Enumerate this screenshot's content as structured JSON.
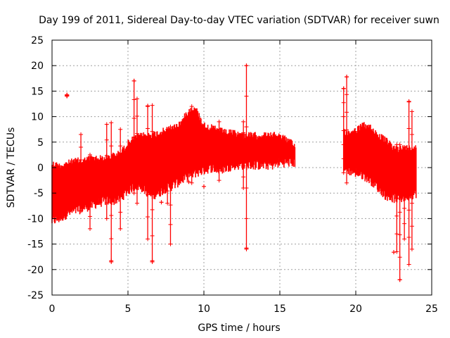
{
  "chart_data": {
    "type": "scatter",
    "title": "Day 199 of 2011, Sidereal Day-to-day VTEC variation (SDTVAR) for receiver suwn",
    "xlabel": "GPS time / hours",
    "ylabel": "SDTVAR / TECUs",
    "xlim": [
      0,
      25
    ],
    "ylim": [
      -25,
      25
    ],
    "xticks": [
      0,
      5,
      10,
      15,
      20,
      25
    ],
    "yticks": [
      -25,
      -20,
      -15,
      -10,
      -5,
      0,
      5,
      10,
      15,
      20,
      25
    ],
    "grid": true,
    "marker": "+",
    "series_color": "#ff0000",
    "envelope": {
      "x": [
        0.0,
        0.5,
        1.0,
        1.5,
        2.0,
        2.5,
        3.0,
        3.5,
        4.0,
        4.5,
        5.0,
        5.5,
        6.0,
        6.5,
        7.0,
        7.5,
        8.0,
        8.5,
        9.0,
        9.5,
        10.0,
        10.5,
        11.0,
        11.5,
        12.0,
        12.5,
        13.0,
        13.5,
        14.0,
        14.5,
        15.0,
        15.5,
        16.0
      ],
      "upper": [
        1.5,
        1.0,
        1.5,
        2.0,
        2.0,
        2.5,
        2.5,
        2.5,
        3.0,
        3.5,
        5.5,
        6.5,
        7.0,
        7.0,
        7.5,
        8.0,
        8.5,
        9.5,
        12.0,
        12.0,
        9.0,
        8.5,
        8.0,
        7.5,
        7.5,
        7.0,
        7.0,
        7.0,
        7.0,
        7.0,
        7.0,
        6.0,
        5.0
      ],
      "lower": [
        -11.5,
        -11.0,
        -10.0,
        -9.5,
        -9.0,
        -8.5,
        -8.0,
        -7.5,
        -7.5,
        -7.0,
        -5.5,
        -4.5,
        -5.0,
        -6.5,
        -6.0,
        -5.0,
        -4.5,
        -3.5,
        -2.5,
        -2.0,
        -1.5,
        -1.0,
        -1.5,
        -1.0,
        -0.5,
        -0.5,
        -0.5,
        -0.5,
        -0.5,
        -0.5,
        0.0,
        0.0,
        0.0
      ]
    },
    "envelope2": {
      "x": [
        19.2,
        19.5,
        20.0,
        20.5,
        21.0,
        21.5,
        22.0,
        22.5,
        23.0,
        23.5,
        24.0
      ],
      "upper": [
        8.0,
        7.5,
        8.0,
        9.0,
        8.5,
        7.0,
        6.0,
        4.5,
        4.5,
        4.5,
        5.0
      ],
      "lower": [
        -1.0,
        -1.5,
        -2.0,
        -2.5,
        -3.5,
        -5.0,
        -6.5,
        -7.0,
        -7.0,
        -6.5,
        -6.0
      ]
    },
    "spikes": [
      {
        "x": 0.98,
        "y1": 14.0,
        "y2": 14.3
      },
      {
        "x": 1.9,
        "y1": -8.5,
        "y2": 6.5
      },
      {
        "x": 2.5,
        "y1": -12.0,
        "y2": 2.5
      },
      {
        "x": 3.6,
        "y1": -10.0,
        "y2": 8.5
      },
      {
        "x": 3.9,
        "y1": -18.5,
        "y2": 8.8
      },
      {
        "x": 4.5,
        "y1": -12.0,
        "y2": 7.5
      },
      {
        "x": 5.4,
        "y1": -5.0,
        "y2": 17.0
      },
      {
        "x": 5.6,
        "y1": -7.0,
        "y2": 13.5
      },
      {
        "x": 6.3,
        "y1": -14.0,
        "y2": 12.0
      },
      {
        "x": 6.6,
        "y1": -18.5,
        "y2": 12.2
      },
      {
        "x": 7.6,
        "y1": -7.0,
        "y2": 7.5
      },
      {
        "x": 7.8,
        "y1": -15.0,
        "y2": 8.0
      },
      {
        "x": 9.2,
        "y1": -3.0,
        "y2": 12.0
      },
      {
        "x": 11.0,
        "y1": -2.5,
        "y2": 9.0
      },
      {
        "x": 12.6,
        "y1": -4.0,
        "y2": 9.0
      },
      {
        "x": 12.8,
        "y1": -16.0,
        "y2": 20.0
      },
      {
        "x": 19.2,
        "y1": -1.0,
        "y2": 15.5
      },
      {
        "x": 19.4,
        "y1": -3.0,
        "y2": 17.8
      },
      {
        "x": 22.7,
        "y1": -16.5,
        "y2": 4.5
      },
      {
        "x": 22.9,
        "y1": -22.0,
        "y2": 4.5
      },
      {
        "x": 23.2,
        "y1": -14.0,
        "y2": 4.0
      },
      {
        "x": 23.5,
        "y1": -19.0,
        "y2": 13.0
      },
      {
        "x": 23.7,
        "y1": -16.0,
        "y2": 11.0
      }
    ],
    "markers": [
      {
        "x": 0.98,
        "y": 14.1
      },
      {
        "x": 5.4,
        "y": 17.0
      },
      {
        "x": 6.3,
        "y": 12.1
      },
      {
        "x": 12.8,
        "y": 20.0
      },
      {
        "x": 19.2,
        "y": 15.5
      },
      {
        "x": 19.4,
        "y": 17.8
      },
      {
        "x": 22.5,
        "y": -16.6
      },
      {
        "x": 22.9,
        "y": -22.0
      },
      {
        "x": 3.9,
        "y": -18.3
      },
      {
        "x": 6.6,
        "y": -18.3
      },
      {
        "x": 12.8,
        "y": -15.8
      },
      {
        "x": 23.5,
        "y": 12.9
      },
      {
        "x": 7.2,
        "y": -6.8
      },
      {
        "x": 9.0,
        "y": -2.8
      },
      {
        "x": 10.0,
        "y": -3.7
      }
    ]
  }
}
